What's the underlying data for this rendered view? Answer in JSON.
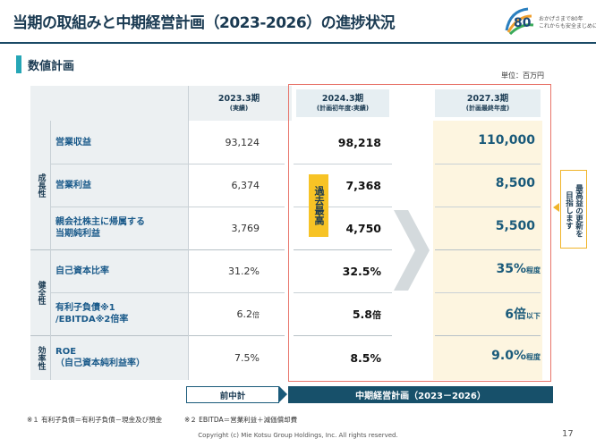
{
  "slide": {
    "title": "当期の取組みと中期経営計画（2023-2026）の進捗状況",
    "section_title": "数値計画",
    "unit": "単位：百万円",
    "page_number": "17",
    "copyright": "Copyright (c) Mie Kotsu Group Holdings, Inc. All rights reserved."
  },
  "logo": {
    "numeral": "80",
    "tagline_1": "おかげさまで80年",
    "tagline_2": "これからも安全まじめに"
  },
  "columns": [
    {
      "year": "2023.3期",
      "sub": "(実績)"
    },
    {
      "year": "2024.3期",
      "sub": "(計画初年度:実績)"
    },
    {
      "year": "2027.3期",
      "sub": "(計画最終年度)"
    }
  ],
  "categories": {
    "growth": "成長性",
    "soundness": "健全性",
    "efficiency": "効率性"
  },
  "rows": [
    {
      "label": "営業収益",
      "v2023": "93,124",
      "v2024": "98,218",
      "v2027": "110,000",
      "s2027": ""
    },
    {
      "label": "営業利益",
      "v2023": "6,374",
      "v2024": "7,368",
      "v2027": "8,500",
      "s2027": ""
    },
    {
      "label_1": "親会社株主に帰属する",
      "label_2": "当期純利益",
      "v2023": "3,769",
      "v2024": "4,750",
      "v2027": "5,500",
      "s2027": ""
    },
    {
      "label": "自己資本比率",
      "v2023": "31.2%",
      "v2024": "32.5%",
      "v2027": "35%",
      "s2027": "程度"
    },
    {
      "label_1": "有利子負債※1",
      "label_2": "/EBITDA※2倍率",
      "v2023": "6.2",
      "s2023": "倍",
      "v2024": "5.8",
      "s2024": "倍",
      "v2027": "6倍",
      "s2027": "以下"
    },
    {
      "label_1": "ROE",
      "label_2": "（自己資本純利益率）",
      "v2023": "7.5%",
      "v2024": "8.5%",
      "v2027": "9.0%",
      "s2027": "程度"
    }
  ],
  "past_highest_badge": "過去最高",
  "side_note": {
    "line_1": "最高益の更新を",
    "line_2": "目指します"
  },
  "periods": {
    "previous": "前中計",
    "current": "中期経営計画（2023－2026）"
  },
  "notes": {
    "note1": "※１ 有利子負債＝有利子負債－現金及び預金",
    "note2": "※２ EBITDA＝営業利益＋減価償却費"
  },
  "colors": {
    "navy": "#1a3a52",
    "teal_accent": "#26a6b6",
    "highlight_red": "#e8746a",
    "badge_yellow": "#f7c325",
    "footer_navy": "#17506a"
  }
}
